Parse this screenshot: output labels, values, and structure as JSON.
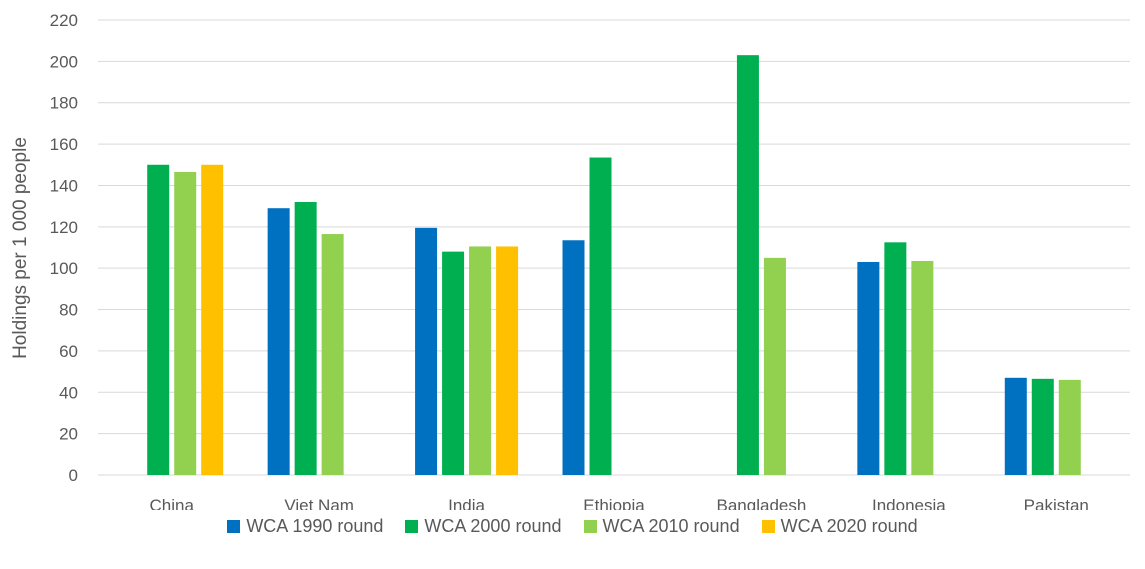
{
  "chart_data": {
    "type": "bar",
    "ylabel": "Holdings per 1 000 people",
    "xlabel": "",
    "ylim": [
      0,
      220
    ],
    "yticks": [
      0,
      20,
      40,
      60,
      80,
      100,
      120,
      140,
      160,
      180,
      200,
      220
    ],
    "grid": true,
    "legend_position": "bottom",
    "categories": [
      "China",
      "Viet Nam",
      "India",
      "Ethiopia",
      "Bangladesh",
      "Indonesia",
      "Pakistan"
    ],
    "series": [
      {
        "name": "WCA 1990 round",
        "color": "#0070c0",
        "values": [
          null,
          129,
          119.5,
          113.5,
          null,
          103,
          47
        ]
      },
      {
        "name": "WCA 2000 round",
        "color": "#00b050",
        "values": [
          150,
          132,
          108,
          153.5,
          203,
          112.5,
          46.5
        ]
      },
      {
        "name": "WCA 2010 round",
        "color": "#92d050",
        "values": [
          146.5,
          116.5,
          110.5,
          null,
          105,
          103.5,
          46
        ]
      },
      {
        "name": "WCA 2020 round",
        "color": "#ffc000",
        "values": [
          150,
          null,
          110.5,
          null,
          null,
          null,
          null
        ]
      }
    ]
  }
}
